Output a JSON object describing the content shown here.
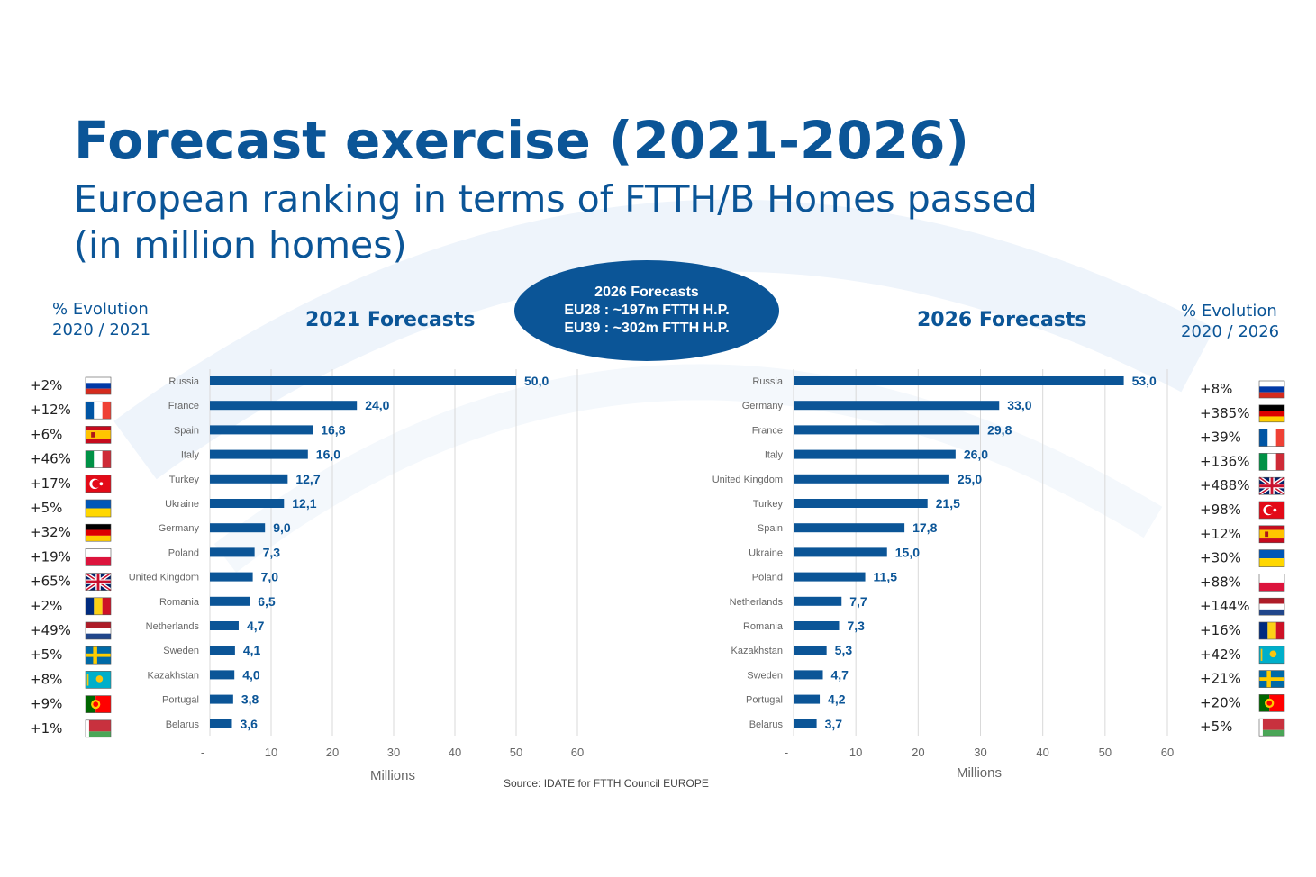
{
  "header": {
    "title": "Forecast exercise (2021-2026)",
    "subtitle_line1": "European ranking in terms of FTTH/B Homes passed",
    "subtitle_line2": "(in million homes)"
  },
  "badge": {
    "line1": "2026 Forecasts",
    "line2": "EU28 : ~197m FTTH H.P.",
    "line3": "EU39 : ~302m FTTH H.P."
  },
  "left_evolution": {
    "heading_line1": "% Evolution",
    "heading_line2": "2020 / 2021",
    "rows": [
      {
        "pct": "+2%",
        "flag": "russia"
      },
      {
        "pct": "+12%",
        "flag": "france"
      },
      {
        "pct": "+6%",
        "flag": "spain"
      },
      {
        "pct": "+46%",
        "flag": "italy"
      },
      {
        "pct": "+17%",
        "flag": "turkey"
      },
      {
        "pct": "+5%",
        "flag": "ukraine"
      },
      {
        "pct": "+32%",
        "flag": "germany"
      },
      {
        "pct": "+19%",
        "flag": "poland"
      },
      {
        "pct": "+65%",
        "flag": "united-kingdom"
      },
      {
        "pct": "+2%",
        "flag": "romania"
      },
      {
        "pct": "+49%",
        "flag": "netherlands"
      },
      {
        "pct": "+5%",
        "flag": "sweden"
      },
      {
        "pct": "+8%",
        "flag": "kazakhstan"
      },
      {
        "pct": "+9%",
        "flag": "portugal"
      },
      {
        "pct": "+1%",
        "flag": "belarus"
      }
    ]
  },
  "right_evolution": {
    "heading_line1": "% Evolution",
    "heading_line2": "2020 / 2026",
    "rows": [
      {
        "pct": "+8%",
        "flag": "russia"
      },
      {
        "pct": "+385%",
        "flag": "germany"
      },
      {
        "pct": "+39%",
        "flag": "france"
      },
      {
        "pct": "+136%",
        "flag": "italy"
      },
      {
        "pct": "+488%",
        "flag": "united-kingdom"
      },
      {
        "pct": "+98%",
        "flag": "turkey"
      },
      {
        "pct": "+12%",
        "flag": "spain"
      },
      {
        "pct": "+30%",
        "flag": "ukraine"
      },
      {
        "pct": "+88%",
        "flag": "poland"
      },
      {
        "pct": "+144%",
        "flag": "netherlands"
      },
      {
        "pct": "+16%",
        "flag": "romania"
      },
      {
        "pct": "+42%",
        "flag": "kazakhstan"
      },
      {
        "pct": "+21%",
        "flag": "sweden"
      },
      {
        "pct": "+20%",
        "flag": "portugal"
      },
      {
        "pct": "+5%",
        "flag": "belarus"
      }
    ]
  },
  "source": "Source: IDATE for FTTH Council EUROPE",
  "colors": {
    "bar": "#0b5597",
    "accent": "#0b5597",
    "grid": "#d9d9d9"
  },
  "chart_data": [
    {
      "type": "bar",
      "orientation": "horizontal",
      "title": "2021 Forecasts",
      "xlabel": "Millions",
      "ylabel": "",
      "xlim": [
        0,
        60
      ],
      "x_ticks": [
        "-",
        "10",
        "20",
        "30",
        "40",
        "50",
        "60"
      ],
      "grid": true,
      "categories": [
        "Russia",
        "France",
        "Spain",
        "Italy",
        "Turkey",
        "Ukraine",
        "Germany",
        "Poland",
        "United Kingdom",
        "Romania",
        "Netherlands",
        "Sweden",
        "Kazakhstan",
        "Portugal",
        "Belarus"
      ],
      "values": [
        50.0,
        24.0,
        16.8,
        16.0,
        12.7,
        12.1,
        9.0,
        7.3,
        7.0,
        6.5,
        4.7,
        4.1,
        4.0,
        3.8,
        3.6
      ],
      "value_labels": [
        "50,0",
        "24,0",
        "16,8",
        "16,0",
        "12,7",
        "12,1",
        "9,0",
        "7,3",
        "7,0",
        "6,5",
        "4,7",
        "4,1",
        "4,0",
        "3,8",
        "3,6"
      ]
    },
    {
      "type": "bar",
      "orientation": "horizontal",
      "title": "2026 Forecasts",
      "xlabel": "Millions",
      "ylabel": "",
      "xlim": [
        0,
        60
      ],
      "x_ticks": [
        "-",
        "10",
        "20",
        "30",
        "40",
        "50",
        "60"
      ],
      "grid": true,
      "categories": [
        "Russia",
        "Germany",
        "France",
        "Italy",
        "United Kingdom",
        "Turkey",
        "Spain",
        "Ukraine",
        "Poland",
        "Netherlands",
        "Romania",
        "Kazakhstan",
        "Sweden",
        "Portugal",
        "Belarus"
      ],
      "values": [
        53.0,
        33.0,
        29.8,
        26.0,
        25.0,
        21.5,
        17.8,
        15.0,
        11.5,
        7.7,
        7.3,
        5.3,
        4.7,
        4.2,
        3.7
      ],
      "value_labels": [
        "53,0",
        "33,0",
        "29,8",
        "26,0",
        "25,0",
        "21,5",
        "17,8",
        "15,0",
        "11,5",
        "7,7",
        "7,3",
        "5,3",
        "4,7",
        "4,2",
        "3,7"
      ]
    }
  ]
}
